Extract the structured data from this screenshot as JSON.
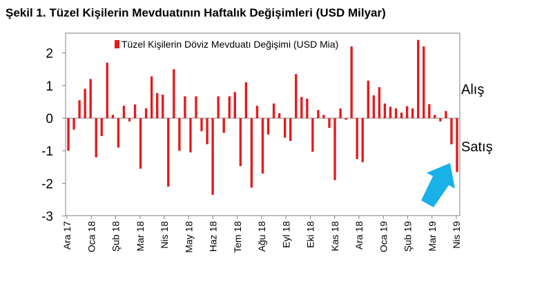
{
  "title": "Şekil 1. Tüzel Kişilerin Mevduatının Haftalık Değişimleri (USD Milyar)",
  "annotations": {
    "buy": "Alış",
    "sell": "Satış"
  },
  "colors": {
    "bar": "#e41a1c",
    "arrow": "#1ab0e8",
    "axis": "#7f7f7f"
  },
  "chart_data": {
    "type": "bar",
    "series": [
      {
        "name": "Tüzel Kişilerin Döviz Mevduatı Değişimi (USD Mia)",
        "values": [
          -1.0,
          -0.35,
          0.55,
          0.9,
          1.2,
          -1.2,
          -0.55,
          1.7,
          0.1,
          -0.9,
          0.38,
          -0.1,
          0.42,
          -1.55,
          0.3,
          1.28,
          0.77,
          0.72,
          -2.1,
          1.5,
          -1.0,
          0.67,
          -1.05,
          0.67,
          -0.4,
          -0.8,
          -2.35,
          0.67,
          -0.45,
          0.67,
          0.8,
          -1.47,
          1.1,
          -2.13,
          0.38,
          -1.7,
          -0.5,
          0.45,
          0.15,
          -0.6,
          -0.7,
          1.35,
          0.65,
          0.6,
          -1.03,
          0.25,
          0.1,
          -0.3,
          -1.9,
          0.3,
          -0.05,
          2.2,
          -1.25,
          -1.35,
          1.15,
          0.7,
          0.95,
          0.45,
          0.35,
          0.3,
          0.17,
          0.37,
          0.3,
          2.4,
          2.2,
          0.43,
          0.1,
          -0.1,
          0.22,
          -0.8,
          -1.65
        ]
      }
    ],
    "x_tick_labels": [
      "Ara 17",
      "Oca 18",
      "Şub 18",
      "Mar 18",
      "Nis 18",
      "May 18",
      "Haz 18",
      "Tem 18",
      "Ağu 18",
      "Eyl 18",
      "Eki 18",
      "Kas 18",
      "Ara 18",
      "Oca 19",
      "Şub 19",
      "Mar 19",
      "Nis 19"
    ],
    "y_tick_labels": [
      "2",
      "1",
      "0",
      "-1",
      "-2",
      "-3"
    ],
    "ylim": [
      -3,
      2.5
    ],
    "yticks": [
      2,
      1,
      0,
      -1,
      -2,
      -3
    ],
    "grid": false,
    "legend": "top-center"
  }
}
